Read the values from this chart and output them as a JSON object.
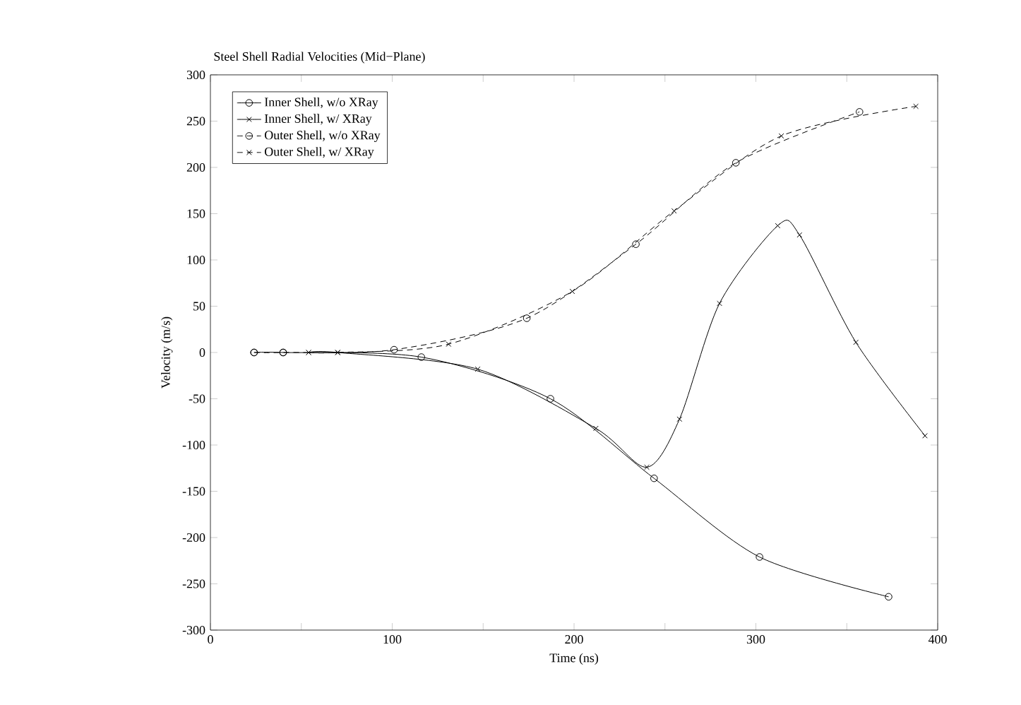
{
  "chart_data": {
    "type": "line",
    "title": "Steel Shell Radial Velocities (Mid−Plane)",
    "xlabel": "Time (ns)",
    "ylabel": "Velocity (m/s)",
    "xlim": [
      0,
      400
    ],
    "ylim": [
      -300,
      300
    ],
    "xticks": [
      0,
      {
        "value": 50,
        "label": null
      },
      100,
      {
        "value": 150,
        "label": null
      },
      200,
      {
        "value": 250,
        "label": null
      },
      300,
      {
        "value": 350,
        "label": null
      },
      400
    ],
    "yticks": [
      -300,
      -250,
      -200,
      -150,
      -100,
      -50,
      0,
      50,
      100,
      150,
      200,
      250,
      300
    ],
    "grid": false,
    "legend": "top left",
    "series": [
      {
        "name": "Inner Shell, w/o XRay",
        "color": "#000000",
        "marker": "circle",
        "line_style": "solid",
        "x": [
          24,
          40,
          116,
          187,
          244,
          302,
          373
        ],
        "values": [
          0,
          0,
          -5,
          -50,
          -136,
          -221,
          -264
        ]
      },
      {
        "name": "Inner Shell, w/ XRay",
        "color": "#000000",
        "marker": "cross",
        "line_style": "solid",
        "x": [
          54,
          70,
          147,
          212,
          240,
          258,
          280,
          312,
          324,
          355,
          393
        ],
        "values": [
          0,
          0,
          -18,
          -82,
          -124,
          -72,
          53,
          137,
          127,
          11,
          -90
        ]
      },
      {
        "name": "Outer Shell, w/o XRay",
        "color": "#000000",
        "marker": "circle",
        "line_style": "dashed",
        "x": [
          24,
          40,
          101,
          174,
          234,
          289,
          357
        ],
        "values": [
          0,
          0,
          3,
          37,
          117,
          205,
          260
        ]
      },
      {
        "name": "Outer Shell, w/ XRay",
        "color": "#000000",
        "marker": "cross",
        "line_style": "dashed",
        "x": [
          54,
          70,
          131,
          199,
          255,
          314,
          388
        ],
        "values": [
          0,
          0,
          9,
          66,
          153,
          234,
          266
        ]
      }
    ]
  }
}
